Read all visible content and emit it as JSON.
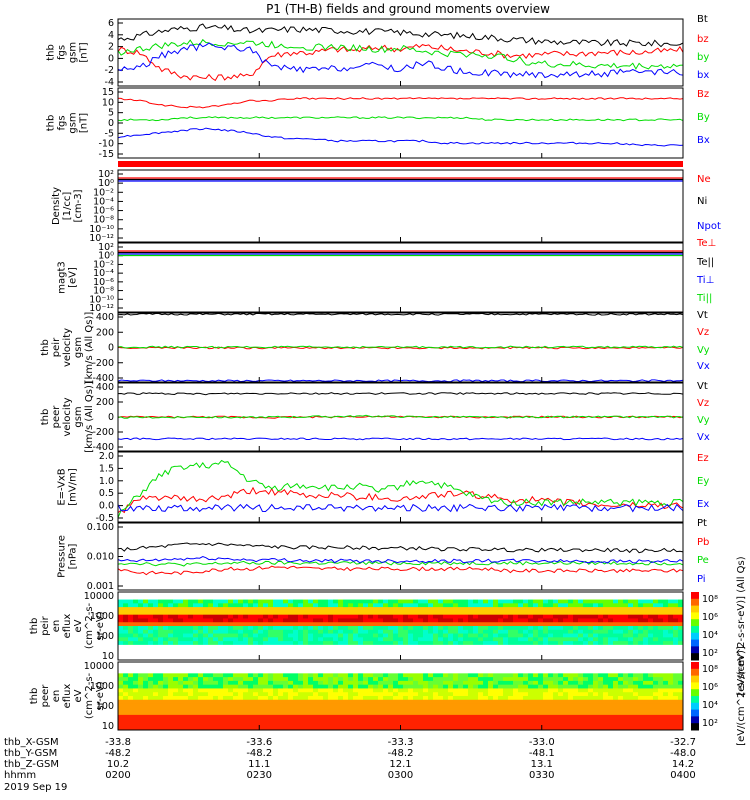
{
  "title": "P1 (TH-B) fields and ground moments overview",
  "chart_data": [
    {
      "id": "fgs_gsm",
      "type": "line",
      "ylabel": [
        "thb",
        "fgs",
        "gsm",
        "[nT]"
      ],
      "yticks": [
        "6",
        "4",
        "2",
        "0",
        "-2",
        "-4"
      ],
      "ylim": [
        -4,
        6
      ],
      "series": [
        {
          "name": "Bt",
          "color": "#000000",
          "values": [
            3.0,
            3.5,
            4.2,
            4.6,
            4.8,
            4.6,
            4.2,
            4.3,
            4.5,
            4.4,
            4.3,
            4.2,
            4.1,
            4.0,
            3.8,
            3.6,
            3.5,
            3.3,
            3.0,
            2.8,
            2.6,
            2.5,
            2.4,
            2.4,
            2.4,
            2.3,
            2.3
          ]
        },
        {
          "name": "bz",
          "color": "#ff0000",
          "values": [
            1.5,
            1.0,
            -1.5,
            -2.5,
            -2.8,
            -2.6,
            -2.6,
            0.5,
            1.0,
            1.0,
            1.5,
            1.3,
            1.8,
            1.5,
            2.0,
            1.6,
            1.2,
            1.0,
            0.6,
            0.6,
            0.8,
            0.8,
            1.0,
            1.0,
            1.0,
            1.2,
            1.4
          ]
        },
        {
          "name": "by",
          "color": "#00dd00",
          "values": [
            1.0,
            1.5,
            2.0,
            2.3,
            2.5,
            2.4,
            2.5,
            2.2,
            2.0,
            1.8,
            1.8,
            1.7,
            1.4,
            1.6,
            1.2,
            0.8,
            0.8,
            0.6,
            0.2,
            -0.5,
            -0.8,
            -0.8,
            -1.0,
            -1.0,
            -1.0,
            -1.0,
            -1.0
          ]
        },
        {
          "name": "bx",
          "color": "#0000ff",
          "values": [
            -1.5,
            -1.2,
            0.5,
            1.5,
            2.0,
            1.8,
            1.6,
            -1.0,
            -1.5,
            -1.6,
            -1.4,
            -1.2,
            -0.8,
            -1.6,
            -0.5,
            -1.3,
            -2.0,
            -2.0,
            -2.2,
            -2.3,
            -2.3,
            -2.2,
            -2.2,
            -2.0,
            -2.0,
            -2.0,
            -2.0
          ]
        }
      ]
    },
    {
      "id": "fgs_gsm_2",
      "type": "line",
      "ylabel": [
        "thb",
        "fgs",
        "gsm",
        "[nT]"
      ],
      "yticks": [
        "15",
        "10",
        "5",
        "0",
        "-5",
        "-10",
        "-15"
      ],
      "ylim": [
        -18,
        15
      ],
      "series": [
        {
          "name": "Bz",
          "color": "#ff0000",
          "values": [
            10,
            9,
            7,
            6,
            6,
            7,
            9,
            9,
            10,
            10,
            10,
            10,
            10,
            10,
            10,
            10,
            10,
            10,
            10,
            10,
            10,
            10,
            10,
            10,
            10,
            10,
            10
          ]
        },
        {
          "name": "By",
          "color": "#00dd00",
          "values": [
            0,
            0,
            0,
            1,
            1,
            1,
            1,
            1,
            1,
            1,
            1,
            1,
            1,
            1,
            1,
            1,
            1,
            0,
            0,
            0,
            0,
            0,
            0,
            0,
            0,
            0,
            0
          ]
        },
        {
          "name": "Bx",
          "color": "#0000ff",
          "values": [
            -8,
            -7,
            -6,
            -5,
            -4,
            -5,
            -6,
            -8,
            -9,
            -9,
            -10,
            -10,
            -10,
            -10,
            -10,
            -11,
            -11,
            -11,
            -11,
            -11,
            -11,
            -11,
            -11,
            -11,
            -12,
            -12,
            -12
          ]
        }
      ]
    },
    {
      "id": "density",
      "type": "line",
      "ylabel": [
        "Density",
        "[1/cc]",
        "[cm-3]"
      ],
      "yticks": [
        "10²",
        "10⁰",
        "10⁻²",
        "10⁻⁴",
        "10⁻⁶",
        "10⁻⁸",
        "10⁻¹⁰",
        "10⁻¹²"
      ],
      "series": [
        {
          "name": "Ne",
          "color": "#ff0000"
        },
        {
          "name": "Ni",
          "color": "#000000"
        },
        {
          "name": "Npot",
          "color": "#0000ff"
        }
      ]
    },
    {
      "id": "temp",
      "type": "line",
      "ylabel": [
        "magt3",
        "[eV]"
      ],
      "yticks": [
        "10²",
        "10⁰",
        "10⁻²",
        "10⁻⁴",
        "10⁻⁶",
        "10⁻⁸",
        "10⁻¹⁰",
        "10⁻¹²"
      ],
      "series": [
        {
          "name": "Te⊥",
          "color": "#ff0000"
        },
        {
          "name": "Te||",
          "color": "#000000"
        },
        {
          "name": "Ti⊥",
          "color": "#0000ff"
        },
        {
          "name": "Ti||",
          "color": "#00dd00"
        }
      ]
    },
    {
      "id": "peir_vel",
      "type": "line",
      "ylabel": [
        "thb",
        "peir",
        "velocity",
        "gsm",
        "[km/s (All Qs)]"
      ],
      "yticks": [
        "400",
        "200",
        "0",
        "-200",
        "-400"
      ],
      "ylim": [
        -420,
        420
      ],
      "series": [
        {
          "name": "Vt",
          "color": "#000000",
          "values": [
            405,
            405,
            405,
            405,
            405,
            405,
            405,
            405,
            405,
            405,
            405,
            405,
            405,
            405,
            405,
            405,
            405,
            405,
            405,
            405,
            405,
            405,
            405,
            405,
            405,
            405,
            405
          ]
        },
        {
          "name": "Vz",
          "color": "#ff0000",
          "values": [
            -5,
            -5,
            -5,
            -5,
            -5,
            -5,
            -5,
            -5,
            -5,
            -5,
            -5,
            -5,
            -5,
            -5,
            -5,
            -5,
            -5,
            -5,
            -5,
            -5,
            -5,
            -5,
            -5,
            -5,
            -5,
            -5,
            -5
          ]
        },
        {
          "name": "Vy",
          "color": "#00dd00",
          "values": [
            5,
            5,
            5,
            5,
            5,
            5,
            5,
            5,
            5,
            5,
            5,
            5,
            5,
            5,
            5,
            5,
            5,
            5,
            5,
            5,
            5,
            5,
            5,
            5,
            5,
            5,
            5
          ]
        },
        {
          "name": "Vx",
          "color": "#0000ff",
          "values": [
            -405,
            -405,
            -405,
            -405,
            -405,
            -405,
            -405,
            -405,
            -405,
            -405,
            -405,
            -405,
            -405,
            -405,
            -405,
            -405,
            -405,
            -405,
            -405,
            -405,
            -405,
            -405,
            -405,
            -405,
            -405,
            -405,
            -405
          ]
        }
      ]
    },
    {
      "id": "peer_vel",
      "type": "line",
      "ylabel": [
        "thb",
        "peer",
        "velocity",
        "gsm",
        "[km/s (All Qs)]"
      ],
      "yticks": [
        "400",
        "200",
        "0",
        "-200",
        "-400"
      ],
      "ylim": [
        -420,
        420
      ],
      "series": [
        {
          "name": "Vt",
          "color": "#000000",
          "values": [
            290,
            290,
            290,
            285,
            285,
            290,
            290,
            290,
            295,
            290,
            290,
            290,
            290,
            290,
            290,
            290,
            290,
            290,
            290,
            290,
            290,
            290,
            290,
            290,
            290,
            290,
            290
          ]
        },
        {
          "name": "Vz",
          "color": "#ff0000",
          "values": [
            0,
            0,
            0,
            0,
            0,
            0,
            -5,
            -5,
            0,
            0,
            0,
            5,
            5,
            0,
            0,
            0,
            0,
            -5,
            0,
            0,
            0,
            0,
            0,
            0,
            0,
            0,
            0
          ]
        },
        {
          "name": "Vy",
          "color": "#00dd00",
          "values": [
            -10,
            -5,
            -5,
            0,
            0,
            -5,
            -5,
            0,
            0,
            5,
            5,
            10,
            10,
            5,
            0,
            0,
            0,
            -5,
            -5,
            0,
            0,
            0,
            0,
            0,
            0,
            0,
            0
          ]
        },
        {
          "name": "Vx",
          "color": "#0000ff",
          "values": [
            -270,
            -270,
            -270,
            -270,
            -270,
            -270,
            -270,
            -270,
            -270,
            -270,
            -270,
            -270,
            -270,
            -270,
            -270,
            -270,
            -270,
            -270,
            -270,
            -270,
            -270,
            -270,
            -270,
            -270,
            -270,
            -270,
            -270
          ]
        }
      ]
    },
    {
      "id": "efield",
      "type": "line",
      "ylabel": [
        "E=-VxB",
        "[mV/m]"
      ],
      "yticks": [
        "2.0",
        "1.5",
        "1.0",
        "0.5",
        "0.0",
        "-0.5"
      ],
      "ylim": [
        -0.5,
        2.0
      ],
      "series": [
        {
          "name": "Ez",
          "color": "#ff0000",
          "values": [
            -0.2,
            0.3,
            0.4,
            0.3,
            0.3,
            0.4,
            0.6,
            0.6,
            0.5,
            0.4,
            0.5,
            0.4,
            0.4,
            0.3,
            0.4,
            0.5,
            0.5,
            0.4,
            0.3,
            0.3,
            0.2,
            0.2,
            0.1,
            0.1,
            0.1,
            0.1,
            0.1
          ]
        },
        {
          "name": "Ey",
          "color": "#00dd00",
          "values": [
            -0.3,
            0.5,
            1.2,
            1.5,
            1.5,
            1.6,
            1.0,
            0.7,
            0.8,
            0.8,
            0.7,
            0.8,
            0.6,
            0.8,
            1.0,
            0.8,
            0.5,
            0.3,
            0.2,
            0.2,
            0.2,
            0.2,
            0.2,
            0.2,
            0.2,
            0.2,
            0.2
          ]
        },
        {
          "name": "Ex",
          "color": "#0000ff",
          "values": [
            0.0,
            0.0,
            0.0,
            0.0,
            0.0,
            0.0,
            0.0,
            0.0,
            0.0,
            0.0,
            0.0,
            0.0,
            0.0,
            0.0,
            0.0,
            0.0,
            0.0,
            0.0,
            0.0,
            0.0,
            0.0,
            0.0,
            0.0,
            0.0,
            0.0,
            0.0,
            0.0
          ]
        }
      ]
    },
    {
      "id": "pressure",
      "type": "line",
      "ylabel": [
        "Pressure",
        "[nPa]"
      ],
      "yticks": [
        "0.100",
        "0.010",
        "0.001"
      ],
      "ylim_log": [
        0.0009,
        0.1
      ],
      "series": [
        {
          "name": "Pt",
          "color": "#000000",
          "values": [
            0.015,
            0.017,
            0.019,
            0.022,
            0.023,
            0.022,
            0.02,
            0.019,
            0.018,
            0.018,
            0.018,
            0.018,
            0.017,
            0.017,
            0.017,
            0.016,
            0.016,
            0.016,
            0.015,
            0.015,
            0.015,
            0.015,
            0.015,
            0.015,
            0.014,
            0.015,
            0.015
          ]
        },
        {
          "name": "Pb",
          "color": "#ff0000",
          "values": [
            0.004,
            0.003,
            0.003,
            0.003,
            0.0035,
            0.004,
            0.004,
            0.0045,
            0.0045,
            0.004,
            0.004,
            0.004,
            0.004,
            0.004,
            0.004,
            0.004,
            0.004,
            0.004,
            0.0035,
            0.0035,
            0.0035,
            0.0035,
            0.0035,
            0.0035,
            0.0035,
            0.0035,
            0.0035
          ]
        },
        {
          "name": "Pe",
          "color": "#00dd00",
          "values": [
            0.006,
            0.006,
            0.0055,
            0.0055,
            0.0055,
            0.006,
            0.006,
            0.006,
            0.006,
            0.006,
            0.006,
            0.006,
            0.006,
            0.006,
            0.006,
            0.006,
            0.006,
            0.006,
            0.006,
            0.006,
            0.006,
            0.006,
            0.006,
            0.006,
            0.006,
            0.006,
            0.006
          ]
        },
        {
          "name": "Pi",
          "color": "#0000ff",
          "values": [
            0.007,
            0.007,
            0.0075,
            0.008,
            0.0085,
            0.008,
            0.0075,
            0.0075,
            0.0075,
            0.007,
            0.007,
            0.007,
            0.007,
            0.007,
            0.007,
            0.007,
            0.007,
            0.007,
            0.007,
            0.007,
            0.007,
            0.0068,
            0.0068,
            0.0068,
            0.0068,
            0.0068,
            0.0068
          ]
        }
      ]
    },
    {
      "id": "peir_spec",
      "type": "heatmap",
      "ylabel": [
        "thb",
        "peir",
        "en",
        "eflux",
        "eV",
        "(cm^2-s-",
        "sr-eV)"
      ],
      "yticks": [
        "10000",
        "1000",
        "100",
        "10"
      ],
      "colorbar_label": "[eV/(cm^2-s-sr-eV)] (All Qs)",
      "colorbar_ticks": [
        "10⁸",
        "10⁶",
        "10⁴",
        "10²"
      ]
    },
    {
      "id": "peer_spec",
      "type": "heatmap",
      "ylabel": [
        "thb",
        "peer",
        "en",
        "eflux",
        "eV",
        "(cm^2-s-",
        "sr-eV)"
      ],
      "yticks": [
        "10000",
        "1000",
        "100",
        "10"
      ],
      "colorbar_label": "[eV/(cm^2-s-sr-eV)]",
      "colorbar_ticks": [
        "10⁸",
        "10⁶",
        "10⁴",
        "10²"
      ]
    }
  ],
  "ephemeris": {
    "labels": [
      "thb_X-GSM",
      "thb_Y-GSM",
      "thb_Z-GSM",
      "hhmm",
      "2019 Sep 19"
    ],
    "columns": [
      {
        "x": "-33.8",
        "y": "-48.2",
        "z": "10.2",
        "t": "0200"
      },
      {
        "x": "-33.6",
        "y": "-48.2",
        "z": "11.1",
        "t": "0230"
      },
      {
        "x": "-33.3",
        "y": "-48.2",
        "z": "12.1",
        "t": "0300"
      },
      {
        "x": "-33.0",
        "y": "-48.1",
        "z": "13.1",
        "t": "0330"
      },
      {
        "x": "-32.7",
        "y": "-48.0",
        "z": "14.2",
        "t": "0400"
      }
    ]
  }
}
